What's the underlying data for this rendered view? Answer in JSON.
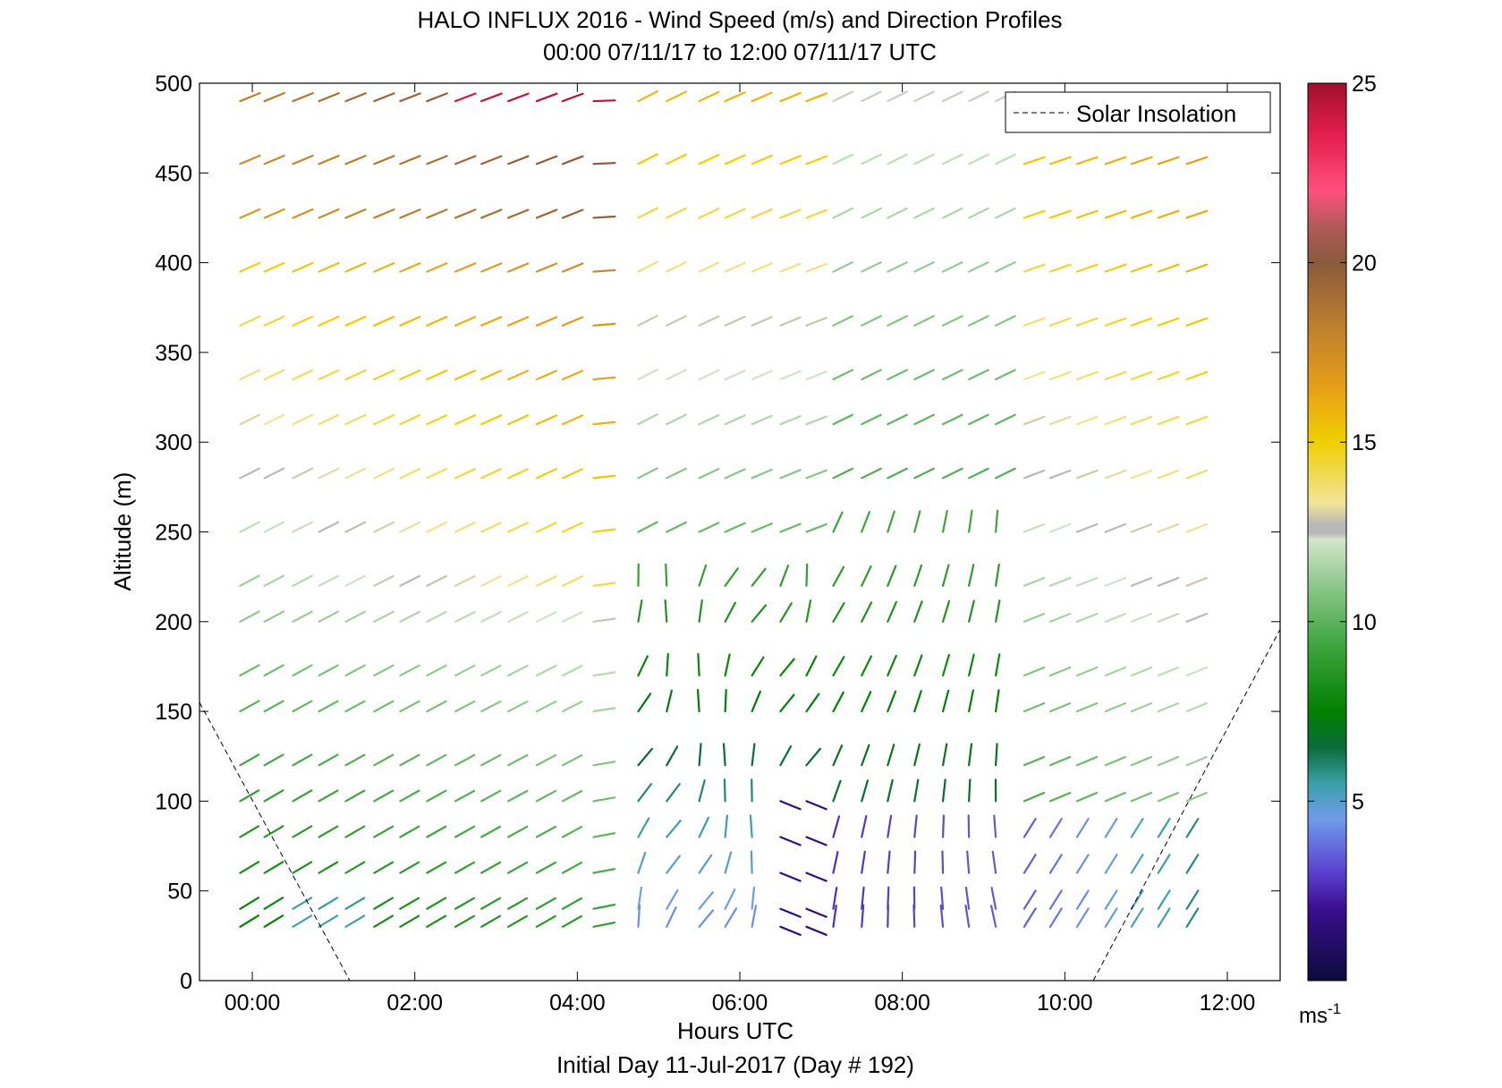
{
  "chart_data": {
    "type": "wind-barb-profile",
    "title": "HALO INFLUX 2016 - Wind Speed (m/s) and Direction Profiles",
    "subtitle": "00:00 07/11/17 to 12:00 07/11/17  UTC",
    "xlabel": "Hours UTC",
    "xlabel2": "Initial Day 11-Jul-2017 (Day # 192)",
    "ylabel": "Altitude (m)",
    "xlim_hours": [
      -0.65,
      12.65
    ],
    "ylim": [
      0,
      500
    ],
    "x_ticks": [
      {
        "value": 0,
        "label": "00:00"
      },
      {
        "value": 2,
        "label": "02:00"
      },
      {
        "value": 4,
        "label": "04:00"
      },
      {
        "value": 6,
        "label": "06:00"
      },
      {
        "value": 8,
        "label": "08:00"
      },
      {
        "value": 10,
        "label": "10:00"
      },
      {
        "value": 12,
        "label": "12:00"
      }
    ],
    "y_ticks": [
      0,
      50,
      100,
      150,
      200,
      250,
      300,
      350,
      400,
      450,
      500
    ],
    "grid": false,
    "legend": {
      "placement": "top-right",
      "entries": [
        {
          "label": "Solar Insolation",
          "style": "dashed"
        }
      ]
    },
    "colorbar": {
      "range": [
        0,
        25
      ],
      "ticks": [
        5,
        10,
        15,
        20,
        25
      ],
      "unit_base": "ms",
      "unit_exp": "-1",
      "stops": [
        {
          "v": 0,
          "c": "#0b0b3a"
        },
        {
          "v": 2,
          "c": "#3a0f8f"
        },
        {
          "v": 3,
          "c": "#5a3fd0"
        },
        {
          "v": 4.5,
          "c": "#6f9bea"
        },
        {
          "v": 5.5,
          "c": "#3aa0a8"
        },
        {
          "v": 6.5,
          "c": "#0a6b3a"
        },
        {
          "v": 7.5,
          "c": "#008000"
        },
        {
          "v": 9.5,
          "c": "#45a845"
        },
        {
          "v": 11,
          "c": "#8dc88d"
        },
        {
          "v": 12.3,
          "c": "#d4e6cc"
        },
        {
          "v": 12.45,
          "c": "#b8b8b8"
        },
        {
          "v": 12.7,
          "c": "#b8b8b8"
        },
        {
          "v": 13.3,
          "c": "#f2e49a"
        },
        {
          "v": 15,
          "c": "#efcf00"
        },
        {
          "v": 16.5,
          "c": "#e8a018"
        },
        {
          "v": 18.5,
          "c": "#b57a30"
        },
        {
          "v": 20,
          "c": "#8a5a3a"
        },
        {
          "v": 21,
          "c": "#b05a5a"
        },
        {
          "v": 22,
          "c": "#ff4f7c"
        },
        {
          "v": 23.5,
          "c": "#e61f50"
        },
        {
          "v": 25,
          "c": "#a0102a"
        }
      ]
    },
    "solar_insolation": [
      {
        "x": -0.65,
        "y": 155
      },
      {
        "x": 1.2,
        "y": 0
      },
      {
        "x": 10.35,
        "y": 0
      },
      {
        "x": 12.7,
        "y": 200
      }
    ],
    "profiles": {
      "times": [
        -0.15,
        0.15,
        0.5,
        0.82,
        1.15,
        1.5,
        1.82,
        2.15,
        2.5,
        2.82,
        3.15,
        3.5,
        3.82,
        4.2,
        4.75,
        5.1,
        5.5,
        5.82,
        6.15,
        6.5,
        6.82,
        7.15,
        7.5,
        7.82,
        8.15,
        8.5,
        8.82,
        9.15,
        9.5,
        9.82,
        10.15,
        10.5,
        10.82,
        11.15,
        11.5
      ],
      "altitudes": [
        30,
        40,
        60,
        80,
        100,
        120,
        150,
        170,
        200,
        220,
        250,
        280,
        310,
        335,
        365,
        395,
        425,
        455,
        490
      ]
    }
  }
}
